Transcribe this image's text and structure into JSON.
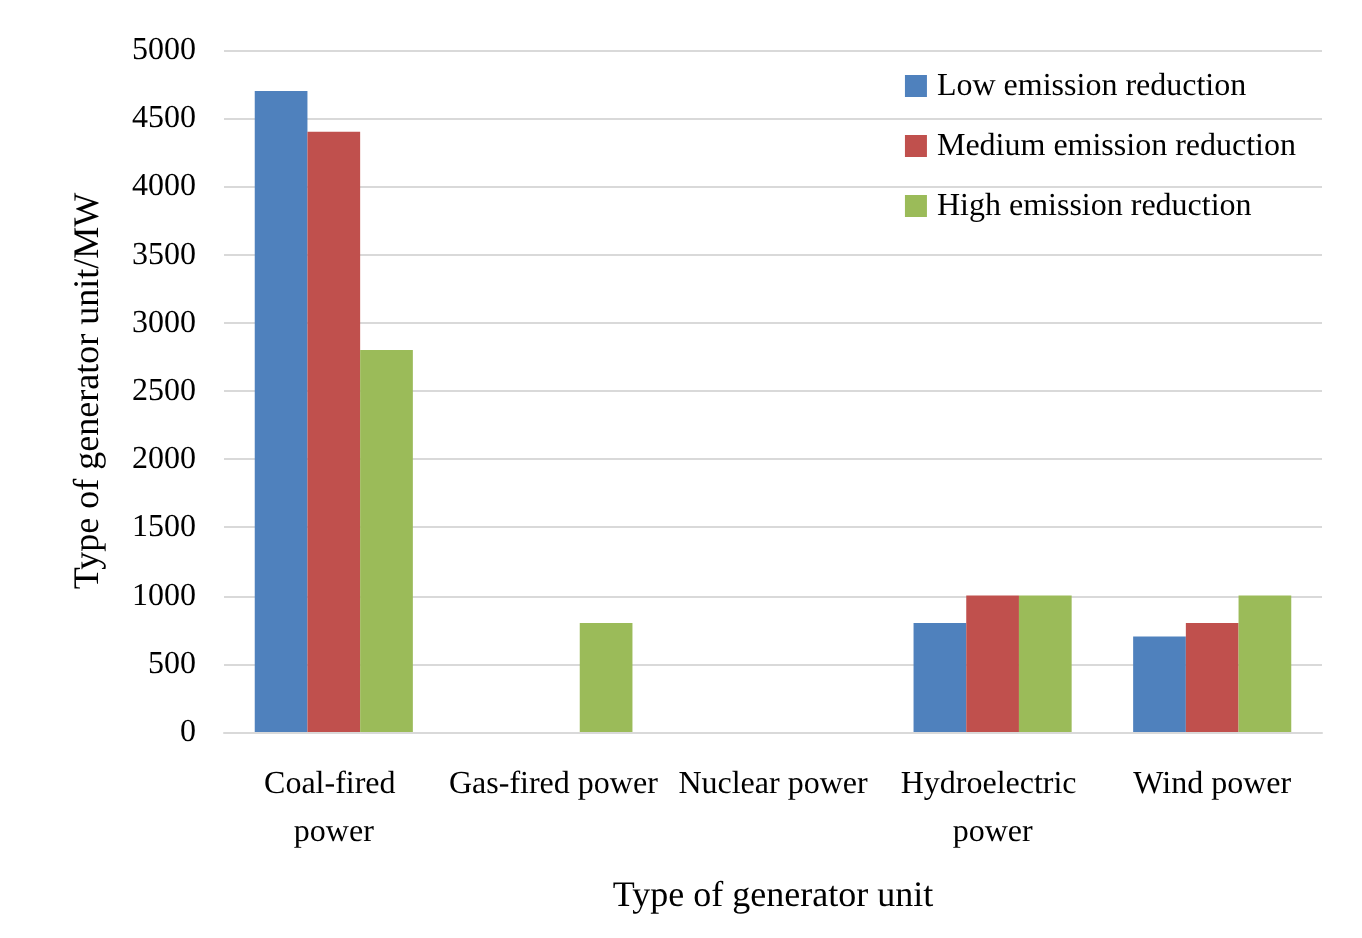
{
  "chart_data": {
    "type": "bar",
    "xlabel": "Type of generator unit",
    "ylabel": "Type of generator unit/MW",
    "categories": [
      "Coal-fired power",
      "Gas-fired power",
      "Nuclear power",
      "Hydroelectric power",
      "Wind power"
    ],
    "series": [
      {
        "name": "Low emission reduction",
        "color": "#4f81bd",
        "values": [
          4700,
          0,
          0,
          800,
          700
        ]
      },
      {
        "name": "Medium emission reduction",
        "color": "#c0504d",
        "values": [
          4400,
          0,
          0,
          1000,
          800
        ]
      },
      {
        "name": "High emission reduction",
        "color": "#9bbb59",
        "values": [
          2800,
          800,
          0,
          1000,
          1000
        ]
      }
    ],
    "ylim": [
      0,
      5000
    ],
    "yticks": [
      0,
      500,
      1000,
      1500,
      2000,
      2500,
      3000,
      3500,
      4000,
      4500,
      5000
    ],
    "grid": "y",
    "legend": "top right"
  }
}
